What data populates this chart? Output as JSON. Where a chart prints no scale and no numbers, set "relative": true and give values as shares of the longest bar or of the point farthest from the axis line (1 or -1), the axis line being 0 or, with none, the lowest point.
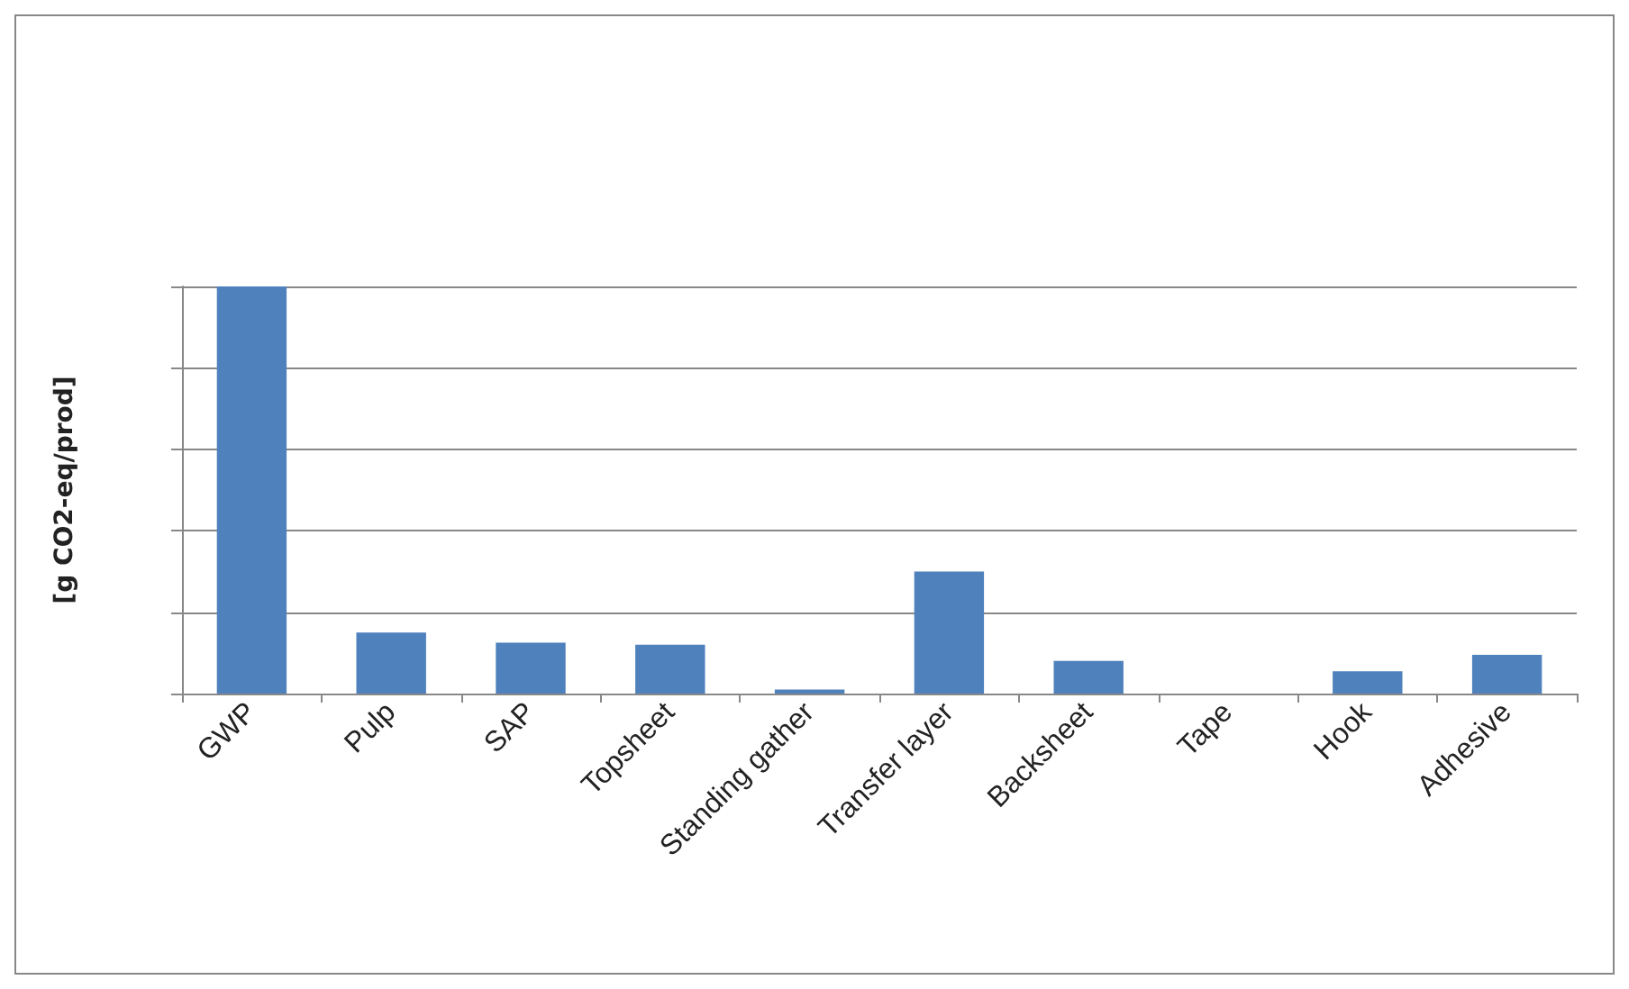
{
  "chart_data": {
    "type": "bar",
    "relative": true,
    "ylabel": "[g CO2-eq/prod]",
    "categories": [
      "GWP",
      "Pulp",
      "SAP",
      "Topsheet",
      "Standing gather",
      "Transfer layer",
      "Backsheet",
      "Tape",
      "Hook",
      "Adhesive"
    ],
    "values": [
      1,
      0.15,
      0.125,
      0.12,
      0.01,
      0.3,
      0.08,
      0,
      0.055,
      0.095
    ],
    "color": "#4f81bd",
    "grid": "y"
  }
}
